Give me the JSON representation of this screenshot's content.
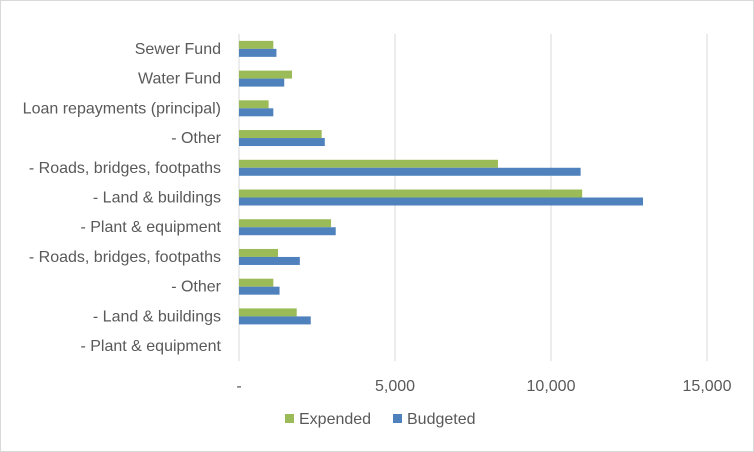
{
  "chart_data": {
    "type": "bar",
    "orientation": "horizontal",
    "title": "",
    "xlabel": "",
    "ylabel": "",
    "xlim": [
      0,
      15000
    ],
    "grid": true,
    "legend_position": "bottom",
    "categories": [
      "Sewer Fund",
      "Water Fund",
      "Loan repayments (principal)",
      "- Other",
      "- Roads, bridges, footpaths",
      "- Land & buildings",
      "- Plant & equipment",
      "- Roads, bridges, footpaths",
      "- Other",
      "- Land & buildings",
      "- Plant & equipment"
    ],
    "x_ticks": [
      {
        "value": 0,
        "label": "-"
      },
      {
        "value": 5000,
        "label": "5,000"
      },
      {
        "value": 10000,
        "label": "10,000"
      },
      {
        "value": 15000,
        "label": "15,000"
      }
    ],
    "series": [
      {
        "name": "Expended",
        "color": "#9bbb59",
        "values": [
          1100,
          1700,
          950,
          2650,
          8300,
          11000,
          2950,
          1250,
          1100,
          1850,
          0
        ]
      },
      {
        "name": "Budgeted",
        "color": "#4f81bd",
        "values": [
          1200,
          1450,
          1100,
          2750,
          10950,
          12950,
          3100,
          1950,
          1300,
          2300,
          0
        ]
      }
    ]
  }
}
